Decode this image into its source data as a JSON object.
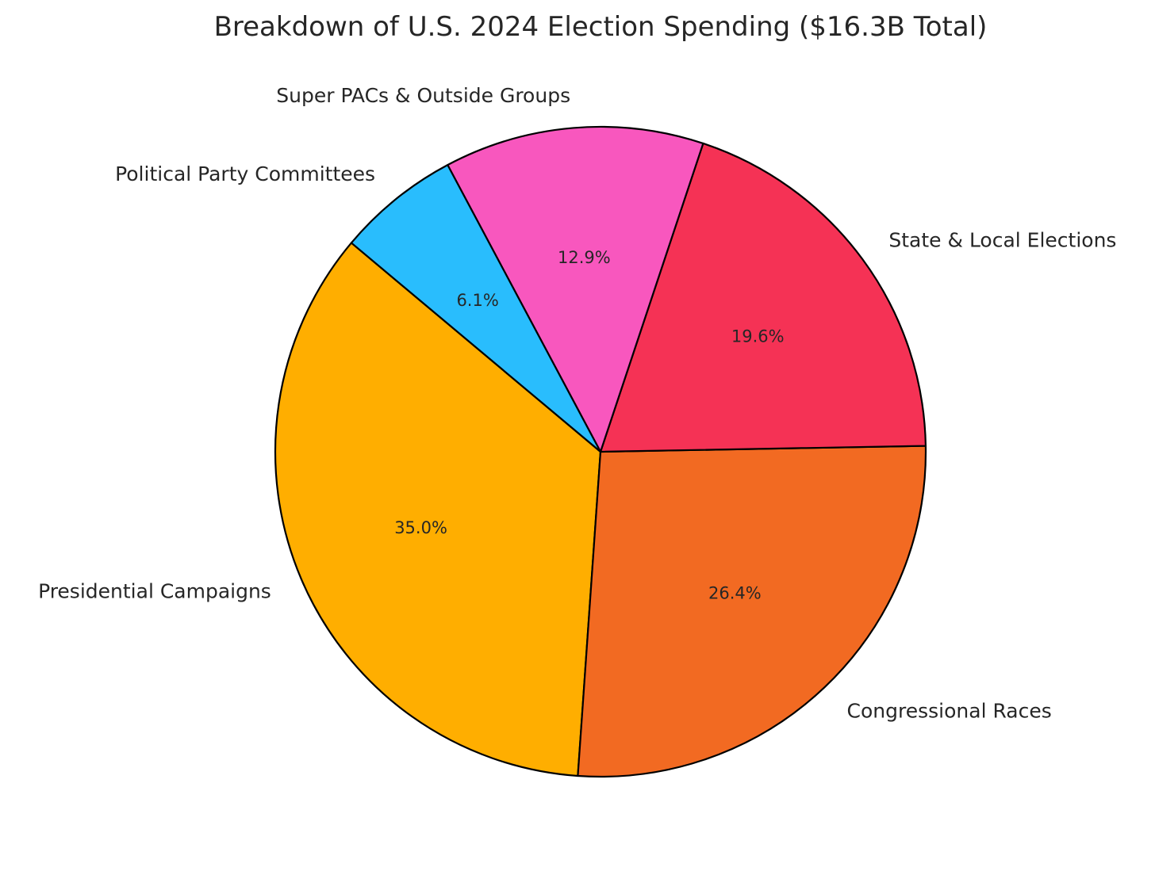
{
  "chart_data": {
    "type": "pie",
    "title": "Breakdown of U.S. 2024 Election Spending ($16.3B Total)",
    "start_angle_deg": 140,
    "direction": "counterclockwise",
    "slices": [
      {
        "label": "Presidential Campaigns",
        "value": 35.0,
        "pct_label": "35.0%",
        "color": "#FFAE00"
      },
      {
        "label": "Congressional Races",
        "value": 26.4,
        "pct_label": "26.4%",
        "color": "#F26A22"
      },
      {
        "label": "State & Local Elections",
        "value": 19.6,
        "pct_label": "19.6%",
        "color": "#F53255"
      },
      {
        "label": "Super PACs & Outside Groups",
        "value": 12.9,
        "pct_label": "12.9%",
        "color": "#F857BE"
      },
      {
        "label": "Political Party Committees",
        "value": 6.1,
        "pct_label": "6.1%",
        "color": "#29BDFD"
      }
    ]
  }
}
